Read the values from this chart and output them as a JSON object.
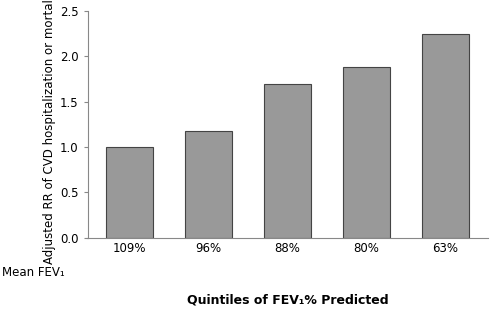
{
  "categories": [
    "109%",
    "96%",
    "88%",
    "80%",
    "63%"
  ],
  "values": [
    1.0,
    1.18,
    1.7,
    1.88,
    2.25
  ],
  "bar_color": "#999999",
  "bar_edgecolor": "#444444",
  "ylabel": "Adjusted RR of CVD hospitalization or mortality",
  "xlabel": "Quintiles of FEV₁% Predicted",
  "mean_fev_label": "Mean FEV₁",
  "ylim": [
    0,
    2.5
  ],
  "yticks": [
    0.0,
    0.5,
    1.0,
    1.5,
    2.0,
    2.5
  ],
  "axis_fontsize": 8.5,
  "tick_fontsize": 8.5,
  "label_fontsize": 8.5,
  "xlabel_fontsize": 9,
  "bar_width": 0.6,
  "bar_linewidth": 0.8,
  "spine_color": "#888888"
}
